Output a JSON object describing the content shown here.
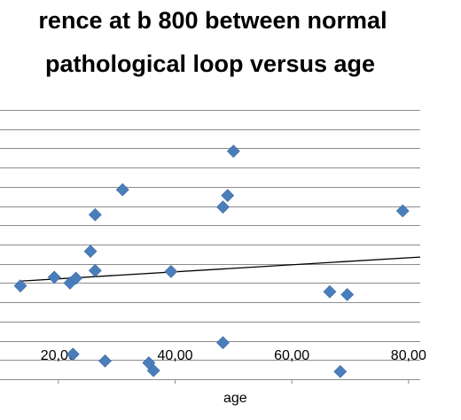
{
  "chart_data": {
    "type": "scatter",
    "title_line1": "rence at b 800 between normal",
    "title_line2": "pathological  loop versus age",
    "xlabel": "age",
    "ylabel": "",
    "xlim": [
      10,
      82
    ],
    "ylim": [
      0,
      14
    ],
    "grid": true,
    "x_tick_labels": [
      "20,00",
      "40,00",
      "60,00",
      "80,00"
    ],
    "x_ticks": [
      20,
      40,
      60,
      80
    ],
    "series": [
      {
        "color": "#4a7ebb",
        "marker": "diamond",
        "points": [
          {
            "x": 13.5,
            "y": 4.85
          },
          {
            "x": 19.3,
            "y": 5.3
          },
          {
            "x": 22.0,
            "y": 5.0
          },
          {
            "x": 23.0,
            "y": 5.25
          },
          {
            "x": 25.5,
            "y": 6.65
          },
          {
            "x": 26.3,
            "y": 5.65
          },
          {
            "x": 26.3,
            "y": 8.55
          },
          {
            "x": 31.0,
            "y": 9.85
          },
          {
            "x": 22.5,
            "y": 1.3
          },
          {
            "x": 28.0,
            "y": 0.95
          },
          {
            "x": 35.5,
            "y": 0.85
          },
          {
            "x": 36.3,
            "y": 0.45
          },
          {
            "x": 39.3,
            "y": 5.6
          },
          {
            "x": 48.2,
            "y": 8.95
          },
          {
            "x": 49.0,
            "y": 9.55
          },
          {
            "x": 50.0,
            "y": 11.85
          },
          {
            "x": 48.2,
            "y": 1.9
          },
          {
            "x": 66.5,
            "y": 4.55
          },
          {
            "x": 68.3,
            "y": 0.4
          },
          {
            "x": 69.5,
            "y": 4.4
          },
          {
            "x": 79.0,
            "y": 8.75
          }
        ]
      }
    ],
    "trendline": {
      "x": [
        13.5,
        82
      ],
      "y": [
        5.1,
        6.35
      ]
    }
  }
}
